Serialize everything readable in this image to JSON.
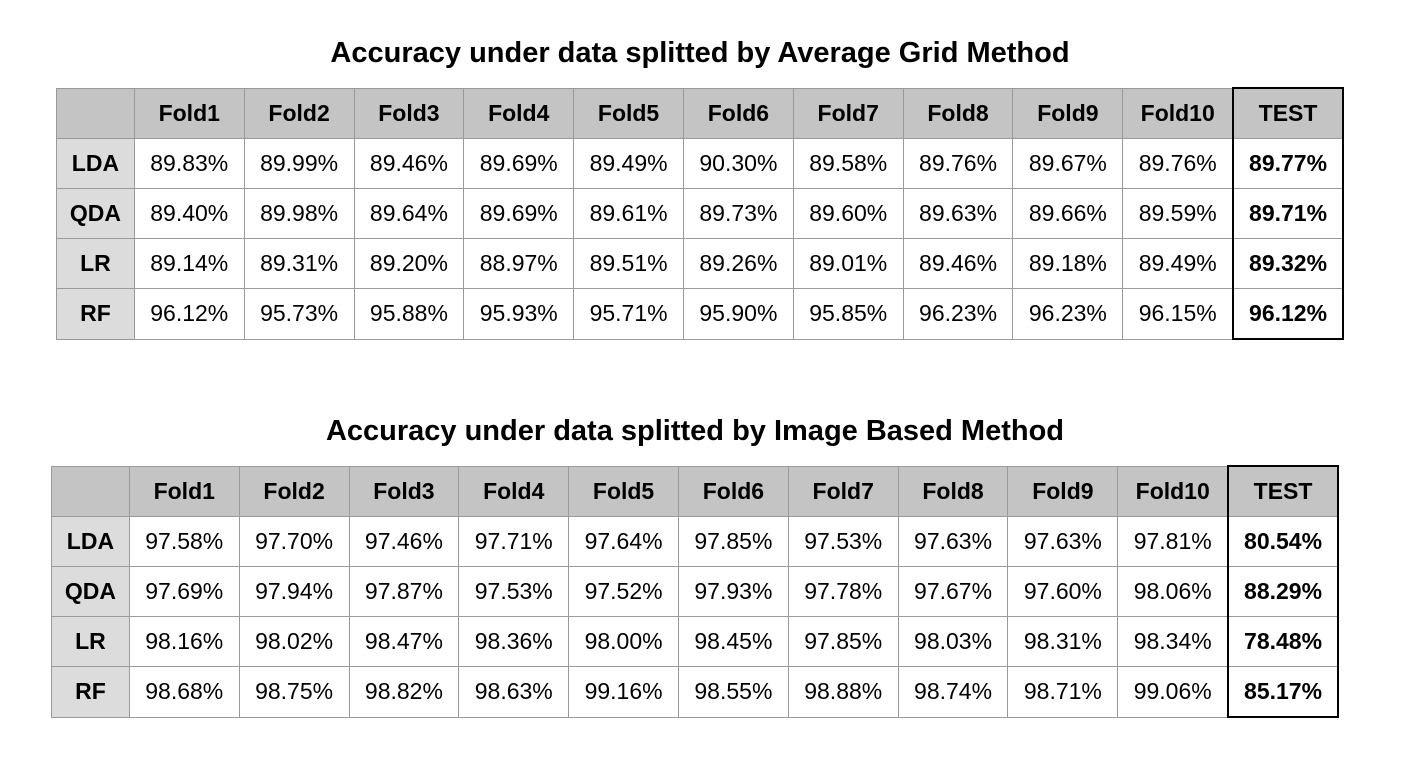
{
  "chart_data": [
    {
      "type": "table",
      "title": "Accuracy under data splitted by Average Grid Method",
      "columns": [
        "Fold1",
        "Fold2",
        "Fold3",
        "Fold4",
        "Fold5",
        "Fold6",
        "Fold7",
        "Fold8",
        "Fold9",
        "Fold10",
        "TEST"
      ],
      "rows": [
        {
          "label": "LDA",
          "values": [
            "89.83%",
            "89.99%",
            "89.46%",
            "89.69%",
            "89.49%",
            "90.30%",
            "89.58%",
            "89.76%",
            "89.67%",
            "89.76%",
            "89.77%"
          ]
        },
        {
          "label": "QDA",
          "values": [
            "89.40%",
            "89.98%",
            "89.64%",
            "89.69%",
            "89.61%",
            "89.73%",
            "89.60%",
            "89.63%",
            "89.66%",
            "89.59%",
            "89.71%"
          ]
        },
        {
          "label": "LR",
          "values": [
            "89.14%",
            "89.31%",
            "89.20%",
            "88.97%",
            "89.51%",
            "89.26%",
            "89.01%",
            "89.46%",
            "89.18%",
            "89.49%",
            "89.32%"
          ]
        },
        {
          "label": "RF",
          "values": [
            "96.12%",
            "95.73%",
            "95.88%",
            "95.93%",
            "95.71%",
            "95.90%",
            "95.85%",
            "96.23%",
            "96.23%",
            "96.15%",
            "96.12%"
          ]
        }
      ]
    },
    {
      "type": "table",
      "title": "Accuracy under data splitted by Image Based Method",
      "columns": [
        "Fold1",
        "Fold2",
        "Fold3",
        "Fold4",
        "Fold5",
        "Fold6",
        "Fold7",
        "Fold8",
        "Fold9",
        "Fold10",
        "TEST"
      ],
      "rows": [
        {
          "label": "LDA",
          "values": [
            "97.58%",
            "97.70%",
            "97.46%",
            "97.71%",
            "97.64%",
            "97.85%",
            "97.53%",
            "97.63%",
            "97.63%",
            "97.81%",
            "80.54%"
          ]
        },
        {
          "label": "QDA",
          "values": [
            "97.69%",
            "97.94%",
            "97.87%",
            "97.53%",
            "97.52%",
            "97.93%",
            "97.78%",
            "97.67%",
            "97.60%",
            "98.06%",
            "88.29%"
          ]
        },
        {
          "label": "LR",
          "values": [
            "98.16%",
            "98.02%",
            "98.47%",
            "98.36%",
            "98.00%",
            "98.45%",
            "97.85%",
            "98.03%",
            "98.31%",
            "98.34%",
            "78.48%"
          ]
        },
        {
          "label": "RF",
          "values": [
            "98.68%",
            "98.75%",
            "98.82%",
            "98.63%",
            "99.16%",
            "98.55%",
            "98.88%",
            "98.74%",
            "98.71%",
            "99.06%",
            "85.17%"
          ]
        }
      ]
    }
  ]
}
